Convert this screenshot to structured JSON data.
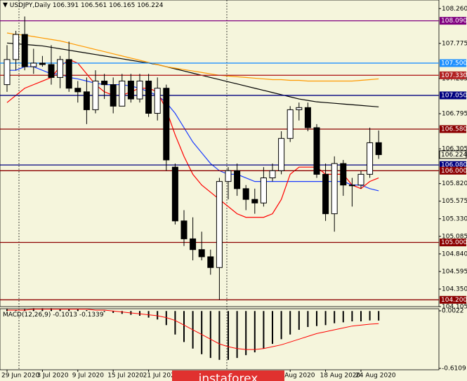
{
  "chart_data": {
    "type": "candlestick",
    "title": "USDJPY,Daily",
    "categories": [
      "29 Jun 2020",
      null,
      null,
      null,
      "3 Jul 2020",
      null,
      null,
      null,
      "9 Jul 2020",
      null,
      null,
      null,
      "15 Jul 2020",
      null,
      null,
      null,
      "21 Jul 2020",
      null,
      null,
      null,
      null,
      null,
      null,
      null,
      null,
      null,
      null,
      null,
      null,
      null,
      null,
      null,
      "Aug 2020",
      null,
      null,
      null,
      "18 Aug 2020",
      null,
      null,
      null,
      "24 Aug 2020",
      null,
      null
    ],
    "open": [
      107.2,
      107.55,
      107.9,
      107.45,
      107.5,
      107.48,
      107.3,
      107.55,
      107.15,
      107.1,
      106.85,
      107.25,
      107.2,
      106.9,
      107.25,
      107.0,
      107.25,
      106.8,
      107.15,
      106.05,
      105.3,
      105.05,
      104.9,
      104.8,
      104.65,
      105.85,
      106.0,
      105.75,
      105.6,
      105.55,
      105.9,
      106.0,
      106.45,
      106.85,
      106.88,
      106.6,
      105.95,
      105.4,
      106.1,
      105.8,
      105.8,
      105.95,
      106.391
    ],
    "high": [
      107.75,
      107.95,
      108.15,
      107.7,
      107.6,
      107.75,
      107.6,
      107.8,
      107.25,
      107.3,
      107.4,
      107.35,
      107.3,
      107.35,
      107.35,
      107.35,
      107.35,
      107.3,
      107.2,
      106.1,
      105.45,
      105.35,
      105.15,
      104.9,
      105.9,
      106.05,
      106.1,
      105.8,
      105.75,
      106.05,
      106.1,
      106.55,
      106.9,
      106.95,
      106.95,
      106.65,
      106.1,
      106.2,
      106.15,
      105.9,
      106.0,
      106.6,
      106.561
    ],
    "low": [
      107.1,
      107.4,
      107.4,
      107.35,
      107.45,
      107.2,
      107.15,
      107.1,
      106.95,
      106.65,
      106.8,
      107.0,
      106.8,
      106.9,
      106.95,
      106.95,
      106.75,
      106.7,
      106.0,
      105.25,
      104.95,
      104.75,
      104.75,
      104.55,
      104.2,
      105.6,
      105.65,
      105.45,
      105.4,
      105.5,
      105.85,
      105.95,
      106.4,
      106.7,
      106.55,
      105.9,
      105.3,
      105.15,
      105.65,
      105.5,
      105.75,
      105.9,
      106.165
    ],
    "close": [
      107.55,
      107.9,
      107.45,
      107.5,
      107.48,
      107.3,
      107.55,
      107.15,
      107.1,
      106.85,
      107.25,
      107.2,
      106.9,
      107.25,
      107.0,
      107.25,
      106.8,
      107.15,
      106.15,
      105.3,
      105.05,
      104.9,
      104.8,
      104.65,
      105.85,
      106.0,
      105.75,
      105.6,
      105.55,
      105.9,
      106.0,
      106.45,
      106.85,
      106.88,
      106.6,
      105.95,
      105.4,
      106.1,
      105.8,
      105.8,
      105.95,
      106.39,
      106.224
    ],
    "series": [
      {
        "name": "MA black",
        "color": "#000000",
        "values": [
          107.78,
          107.77,
          107.76,
          107.75,
          107.74,
          107.72,
          107.7,
          107.68,
          107.66,
          107.64,
          107.62,
          107.6,
          107.58,
          107.56,
          107.54,
          107.52,
          107.5,
          107.48,
          107.45,
          107.42,
          107.39,
          107.36,
          107.33,
          107.3,
          107.27,
          107.24,
          107.21,
          107.18,
          107.15,
          107.12,
          107.09,
          107.06,
          107.03,
          107.0,
          106.98,
          106.96,
          106.95,
          106.94,
          106.93,
          106.92,
          106.91,
          106.9,
          106.89
        ]
      },
      {
        "name": "MA orange",
        "color": "#ff9900",
        "values": [
          107.92,
          107.9,
          107.89,
          107.87,
          107.85,
          107.83,
          107.81,
          107.78,
          107.75,
          107.72,
          107.69,
          107.66,
          107.63,
          107.6,
          107.57,
          107.54,
          107.51,
          107.48,
          107.45,
          107.43,
          107.41,
          107.39,
          107.37,
          107.35,
          107.33,
          107.32,
          107.31,
          107.3,
          107.29,
          107.28,
          107.27,
          107.27,
          107.26,
          107.26,
          107.25,
          107.25,
          107.25,
          107.25,
          107.25,
          107.25,
          107.26,
          107.27,
          107.28
        ]
      },
      {
        "name": "Kijun",
        "color": "#1a3cff",
        "values": [
          107.4,
          107.4,
          107.45,
          107.45,
          107.4,
          107.35,
          107.35,
          107.3,
          107.28,
          107.25,
          107.22,
          107.2,
          107.2,
          107.2,
          107.18,
          107.15,
          107.1,
          107.05,
          106.95,
          106.8,
          106.6,
          106.4,
          106.25,
          106.1,
          106.0,
          105.95,
          105.95,
          105.9,
          105.85,
          105.85,
          105.85,
          105.85,
          105.85,
          105.85,
          105.85,
          105.85,
          105.85,
          105.85,
          105.85,
          105.8,
          105.8,
          105.75,
          105.72
        ]
      },
      {
        "name": "Tenkan",
        "color": "#ff0000",
        "values": [
          106.95,
          107.05,
          107.15,
          107.2,
          107.25,
          107.3,
          107.45,
          107.55,
          107.5,
          107.35,
          107.2,
          107.1,
          107.05,
          107.05,
          107.1,
          107.15,
          107.15,
          107.1,
          106.85,
          106.5,
          106.2,
          105.95,
          105.8,
          105.7,
          105.6,
          105.5,
          105.4,
          105.35,
          105.35,
          105.35,
          105.4,
          105.6,
          105.95,
          106.05,
          106.05,
          106.05,
          105.95,
          105.95,
          105.95,
          105.8,
          105.75,
          105.85,
          105.9
        ]
      }
    ],
    "levels": [
      {
        "value": 108.09,
        "label": "108.090",
        "color": "#800080"
      },
      {
        "value": 107.5,
        "label": "107.500",
        "color": "#1e90ff"
      },
      {
        "value": 107.33,
        "label": "107.330",
        "color": "#b22222"
      },
      {
        "value": 107.05,
        "label": "107.050",
        "color": "#000080"
      },
      {
        "value": 106.58,
        "label": "106.580",
        "color": "#8b0000"
      },
      {
        "value": 106.08,
        "label": "106.080",
        "color": "#000080"
      },
      {
        "value": 106.0,
        "label": "106.000",
        "color": "#8b0000"
      },
      {
        "value": 105.0,
        "label": "105.000",
        "color": "#8b0000"
      },
      {
        "value": 104.2,
        "label": "104.200",
        "color": "#8b0000"
      }
    ],
    "ylim": [
      104.105,
      108.38
    ],
    "yticks": [
      {
        "value": 108.26,
        "label": "108.260"
      },
      107.775,
      107.285,
      106.795,
      106.305,
      {
        "value": 105.82,
        "label": "105.820"
      },
      105.575,
      {
        "value": 105.33,
        "label": "105.330"
      },
      105.085,
      {
        "value": 104.84,
        "label": "104.840"
      },
      104.595,
      {
        "value": 104.35,
        "label": "104.350"
      },
      104.105
    ],
    "macd": {
      "label": "MACD(12,26,9)",
      "histogram": [
        0.02,
        0.01,
        0.02,
        0.03,
        0.03,
        0.03,
        0.02,
        0.02,
        0.02,
        0.01,
        0,
        -0.01,
        -0.02,
        -0.03,
        -0.04,
        -0.05,
        -0.07,
        -0.09,
        -0.15,
        -0.25,
        -0.33,
        -0.4,
        -0.46,
        -0.5,
        -0.52,
        -0.52,
        -0.5,
        -0.47,
        -0.44,
        -0.4,
        -0.35,
        -0.3,
        -0.25,
        -0.2,
        -0.17,
        -0.16,
        -0.15,
        -0.13,
        -0.12,
        -0.11,
        -0.11,
        -0.1,
        -0.1013
      ],
      "signal": [
        0.01,
        0.01,
        0.01,
        0.02,
        0.02,
        0.02,
        0.02,
        0.02,
        0.02,
        0.02,
        0.01,
        0.01,
        0,
        -0.01,
        -0.02,
        -0.03,
        -0.04,
        -0.05,
        -0.07,
        -0.1,
        -0.15,
        -0.2,
        -0.25,
        -0.3,
        -0.35,
        -0.38,
        -0.4,
        -0.41,
        -0.41,
        -0.4,
        -0.38,
        -0.36,
        -0.33,
        -0.3,
        -0.27,
        -0.24,
        -0.22,
        -0.2,
        -0.18,
        -0.16,
        -0.15,
        -0.14,
        -0.1339
      ],
      "ylim": [
        -0.6109,
        0.0022
      ],
      "yticks": [
        0.0022,
        -0.6109
      ]
    },
    "watermark": "instaforex"
  }
}
